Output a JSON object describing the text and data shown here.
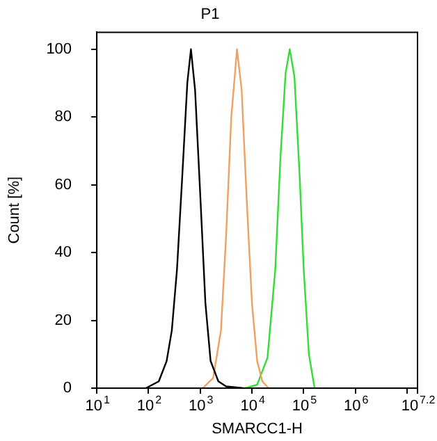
{
  "chart_data": {
    "type": "line",
    "title": "P1",
    "xlabel": "SMARCC1-H",
    "ylabel": "Count [%]",
    "log": "x",
    "grid": false,
    "legend": false,
    "marker": "none",
    "xlim": [
      10,
      15848932
    ],
    "xticks": [
      {
        "value": 10,
        "label": "10$^{1}$"
      },
      {
        "value": 100,
        "label": "10$^{2}$"
      },
      {
        "value": 1000,
        "label": "10$^{3}$"
      },
      {
        "value": 10000,
        "label": "10$^{4}$"
      },
      {
        "value": 100000,
        "label": "10$^{5}$"
      },
      {
        "value": 1000000,
        "label": "10$^{6}$"
      },
      {
        "value": 10000000,
        "label": null
      },
      {
        "value": 15848932,
        "label": "10$^{7.2}$"
      }
    ],
    "ylim": [
      0,
      105
    ],
    "yticks": [
      0,
      20,
      40,
      60,
      80,
      100
    ],
    "series": [
      {
        "color": "#000000",
        "x": [
          89,
          158,
          224,
          282,
          355,
          447,
          562,
          661,
          794,
          1000,
          1259,
          1585,
          2239,
          3162,
          6761
        ],
        "values": [
          0,
          2,
          8,
          17,
          35,
          62,
          90,
          100,
          88,
          57,
          25,
          8,
          2,
          0.5,
          0
        ]
      },
      {
        "color": "#f0a060",
        "x": [
          1122,
          1778,
          2512,
          3162,
          3981,
          5129,
          6310,
          7943,
          10000,
          12589,
          15849,
          20893
        ],
        "values": [
          0,
          3,
          17,
          45,
          80,
          100,
          88,
          55,
          25,
          8,
          2,
          0
        ]
      },
      {
        "color": "#33dd33",
        "x": [
          7413,
          12589,
          19953,
          28184,
          35481,
          44668,
          53703,
          66069,
          83176,
          100000,
          125893,
          162181
        ],
        "values": [
          0,
          1,
          9,
          35,
          68,
          93,
          100,
          92,
          63,
          35,
          10,
          0
        ]
      }
    ]
  }
}
